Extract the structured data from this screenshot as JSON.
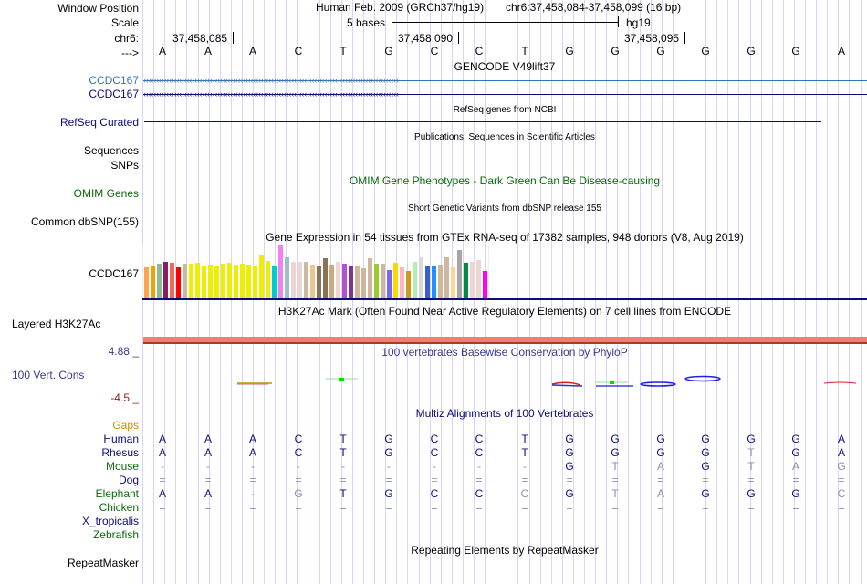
{
  "header": {
    "window_position_label": "Window Position",
    "scale_label": "Scale",
    "chrom_label": "chr6:",
    "strand_label": "--->",
    "assembly_title": "Human Feb. 2009 (GRCh37/hg19)",
    "position": "chr6:37,458,084-37,458,099 (16 bp)",
    "scale_text": "5 bases",
    "scale_assembly": "hg19",
    "ruler_ticks": [
      "37,458,085",
      "37,458,090",
      "37,458,095"
    ],
    "sequence": [
      "A",
      "A",
      "A",
      "C",
      "T",
      "G",
      "C",
      "C",
      "T",
      "G",
      "G",
      "G",
      "G",
      "G",
      "G",
      "A"
    ]
  },
  "tracks": {
    "gencode": {
      "title": "GENCODE V49lift37",
      "genes": [
        {
          "label": "CCDC167",
          "color": "#3774b4"
        },
        {
          "label": "CCDC167",
          "color": "#0c0c78"
        }
      ]
    },
    "refseq": {
      "title": "RefSeq genes from NCBI",
      "label": "RefSeq Curated"
    },
    "publications": {
      "title": "Publications: Sequences in Scientific Articles",
      "labels": [
        "Sequences",
        "SNPs"
      ]
    },
    "omim": {
      "title": "OMIM Gene Phenotypes - Dark Green Can Be Disease-causing",
      "label": "OMIM Genes"
    },
    "dbsnp": {
      "title": "Short Genetic Variants from dbSNP release 155",
      "label": "Common dbSNP(155)"
    },
    "gtex": {
      "title": "Gene Expression in 54 tissues from GTEx RNA-seq of 17382 samples, 948 donors (V8, Aug 2019)",
      "label": "CCDC167",
      "bars": [
        {
          "color": "#ffa54f",
          "value": 0.58
        },
        {
          "color": "#eea20e",
          "value": 0.6
        },
        {
          "color": "#8fbc8f",
          "value": 0.65
        },
        {
          "color": "#8b1c62",
          "value": 0.68
        },
        {
          "color": "#ee6a50",
          "value": 0.66
        },
        {
          "color": "#ff0000",
          "value": 0.58
        },
        {
          "color": "#cdb79e",
          "value": 0.64
        },
        {
          "color": "#eeee00",
          "value": 0.64
        },
        {
          "color": "#eeee00",
          "value": 0.66
        },
        {
          "color": "#eeee00",
          "value": 0.61
        },
        {
          "color": "#eeee00",
          "value": 0.62
        },
        {
          "color": "#eeee00",
          "value": 0.61
        },
        {
          "color": "#eeee00",
          "value": 0.64
        },
        {
          "color": "#eeee00",
          "value": 0.66
        },
        {
          "color": "#eeee00",
          "value": 0.62
        },
        {
          "color": "#eeee00",
          "value": 0.64
        },
        {
          "color": "#eeee00",
          "value": 0.62
        },
        {
          "color": "#eeee00",
          "value": 0.61
        },
        {
          "color": "#eeee00",
          "value": 0.8
        },
        {
          "color": "#eeee00",
          "value": 0.7
        },
        {
          "color": "#00cdcd",
          "value": 0.59
        },
        {
          "color": "#ee82ee",
          "value": 1.0
        },
        {
          "color": "#9ac0cd",
          "value": 0.77
        },
        {
          "color": "#eed5d2",
          "value": 0.68
        },
        {
          "color": "#eed5d2",
          "value": 0.68
        },
        {
          "color": "#cdb79e",
          "value": 0.68
        },
        {
          "color": "#eec591",
          "value": 0.62
        },
        {
          "color": "#8b7355",
          "value": 0.6
        },
        {
          "color": "#8b7355",
          "value": 0.74
        },
        {
          "color": "#cdaa7d",
          "value": 0.62
        },
        {
          "color": "#eed5d2",
          "value": 0.68
        },
        {
          "color": "#b452cd",
          "value": 0.65
        },
        {
          "color": "#7a378b",
          "value": 0.61
        },
        {
          "color": "#cdb79e",
          "value": 0.61
        },
        {
          "color": "#cdb79e",
          "value": 0.56
        },
        {
          "color": "#cdb79e",
          "value": 0.74
        },
        {
          "color": "#9acd32",
          "value": 0.65
        },
        {
          "color": "#cdb79e",
          "value": 0.65
        },
        {
          "color": "#7b68ee",
          "value": 0.53
        },
        {
          "color": "#ffd700",
          "value": 0.66
        },
        {
          "color": "#ffb6c1",
          "value": 0.57
        },
        {
          "color": "#cd9b1d",
          "value": 0.51
        },
        {
          "color": "#b4eeb4",
          "value": 0.68
        },
        {
          "color": "#d9d9d9",
          "value": 0.76
        },
        {
          "color": "#3a5fcd",
          "value": 0.61
        },
        {
          "color": "#1e90ff",
          "value": 0.6
        },
        {
          "color": "#cdb79e",
          "value": 0.62
        },
        {
          "color": "#cdb79e",
          "value": 0.77
        },
        {
          "color": "#ffd39b",
          "value": 0.57
        },
        {
          "color": "#a6a6a6",
          "value": 0.9
        },
        {
          "color": "#008b45",
          "value": 0.66
        },
        {
          "color": "#eed5d2",
          "value": 0.68
        },
        {
          "color": "#eed5d2",
          "value": 0.72
        },
        {
          "color": "#ff00ff",
          "value": 0.51
        }
      ]
    },
    "h3k27ac": {
      "title": "H3K27Ac Mark (Often Found Near Active Regulatory Elements) on 7 cell lines from ENCODE",
      "label": "Layered H3K27Ac"
    },
    "phylop": {
      "title": "100 vertebrates Basewise Conservation by PhyloP",
      "label": "100 Vert. Cons",
      "max_label": "4.88 _",
      "min_label": "-4.5 _"
    },
    "multiz": {
      "title": "Multiz Alignments of 100 Vertebrates",
      "gaps_label": "Gaps",
      "species": [
        {
          "name": "Human",
          "color": "#0c0c78",
          "bases": [
            "A",
            "A",
            "A",
            "C",
            "T",
            "G",
            "C",
            "C",
            "T",
            "G",
            "G",
            "G",
            "G",
            "G",
            "G",
            "A"
          ],
          "faint": [
            0,
            0,
            0,
            0,
            0,
            0,
            0,
            0,
            0,
            0,
            0,
            0,
            0,
            0,
            0,
            0
          ]
        },
        {
          "name": "Rhesus",
          "color": "#0c0c78",
          "bases": [
            "A",
            "A",
            "A",
            "C",
            "T",
            "G",
            "C",
            "C",
            "T",
            "G",
            "G",
            "G",
            "G",
            "T",
            "G",
            "A"
          ],
          "faint": [
            0,
            0,
            0,
            0,
            0,
            0,
            0,
            0,
            0,
            0,
            0,
            0,
            0,
            1,
            0,
            0
          ]
        },
        {
          "name": "Mouse",
          "color": "#0b6a0b",
          "bases": [
            "-",
            "-",
            "-",
            "-",
            "-",
            "-",
            "-",
            "-",
            "-",
            "G",
            "T",
            "A",
            "G",
            "T",
            "A",
            "G"
          ],
          "faint": [
            1,
            1,
            1,
            1,
            1,
            1,
            1,
            1,
            1,
            0,
            1,
            1,
            0,
            1,
            1,
            1
          ]
        },
        {
          "name": "Dog",
          "color": "#0c0c78",
          "bases": [
            "=",
            "=",
            "=",
            "=",
            "=",
            "=",
            "=",
            "=",
            "=",
            "=",
            "=",
            "=",
            "=",
            "=",
            "=",
            "="
          ],
          "faint": [
            1,
            1,
            1,
            1,
            1,
            1,
            1,
            1,
            1,
            1,
            1,
            1,
            1,
            1,
            1,
            1
          ]
        },
        {
          "name": "Elephant",
          "color": "#0b6a0b",
          "bases": [
            "A",
            "A",
            "-",
            "G",
            "T",
            "G",
            "C",
            "C",
            "C",
            "G",
            "T",
            "A",
            "G",
            "G",
            "G",
            "C"
          ],
          "faint": [
            0,
            0,
            1,
            1,
            0,
            0,
            0,
            0,
            1,
            0,
            1,
            1,
            0,
            0,
            0,
            1
          ]
        },
        {
          "name": "Chicken",
          "color": "#0b6a0b",
          "bases": [
            "=",
            "=",
            "=",
            "=",
            "=",
            "=",
            "=",
            "=",
            "=",
            "=",
            "=",
            "=",
            "=",
            "=",
            "=",
            "="
          ],
          "faint": [
            1,
            1,
            1,
            1,
            1,
            1,
            1,
            1,
            1,
            1,
            1,
            1,
            1,
            1,
            1,
            1
          ]
        },
        {
          "name": "X_tropicalis",
          "color": "#0c0c78",
          "bases": [],
          "faint": []
        },
        {
          "name": "Zebrafish",
          "color": "#0b6a0b",
          "bases": [],
          "faint": []
        }
      ]
    },
    "repeatmasker": {
      "title": "Repeating Elements by RepeatMasker",
      "label": "RepeatMasker"
    }
  },
  "colors": {
    "grid_line": "#d6d6f4",
    "h3k27ac_fill": "#f47c74",
    "navy": "#0c0c78",
    "gencode_basic": "#3774b4"
  }
}
